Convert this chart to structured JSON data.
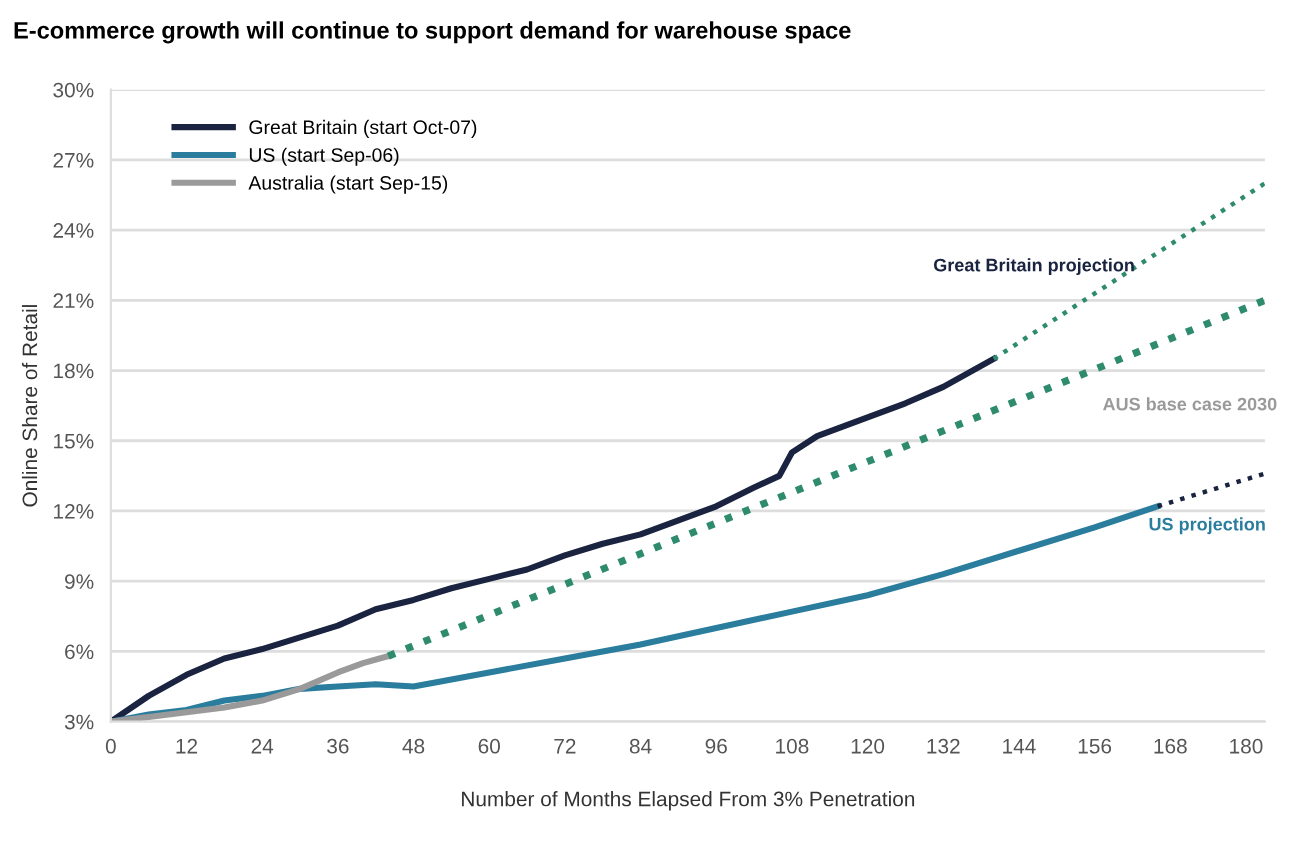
{
  "chart_data": {
    "type": "line",
    "title": "E-commerce growth will continue to support demand for warehouse space",
    "xlabel": "Number of Months Elapsed From 3% Penetration",
    "ylabel": "Online Share of Retail",
    "series": [
      {
        "name": "Great Britain (start Oct-07)",
        "color": "#1a2340",
        "x": [
          0,
          6,
          12,
          18,
          24,
          30,
          36,
          42,
          48,
          54,
          60,
          66,
          72,
          78,
          84,
          90,
          96,
          102,
          106,
          108,
          112,
          120,
          126,
          132,
          136,
          140
        ],
        "values": [
          3,
          4.1,
          5,
          5.7,
          6.1,
          6.6,
          7.1,
          7.8,
          8.2,
          8.7,
          9.1,
          9.5,
          10.1,
          10.6,
          11.0,
          11.6,
          12.2,
          13.0,
          13.5,
          14.5,
          15.2,
          16.0,
          16.6,
          17.3,
          17.9,
          18.5
        ]
      },
      {
        "name": "US (start Sep-06)",
        "color": "#2a7d9c",
        "x": [
          0,
          6,
          12,
          18,
          24,
          30,
          36,
          42,
          48,
          54,
          60,
          72,
          84,
          96,
          108,
          120,
          132,
          144,
          156,
          166
        ],
        "values": [
          3,
          3.3,
          3.5,
          3.9,
          4.1,
          4.4,
          4.5,
          4.6,
          4.5,
          4.8,
          5.1,
          5.7,
          6.3,
          7.0,
          7.7,
          8.4,
          9.3,
          10.3,
          11.3,
          12.2
        ]
      },
      {
        "name": "Australia (start Sep-15)",
        "color": "#9a9a9a",
        "x": [
          0,
          6,
          12,
          18,
          24,
          30,
          36,
          40,
          44
        ],
        "values": [
          3,
          3.2,
          3.4,
          3.6,
          3.9,
          4.4,
          5.1,
          5.5,
          5.8
        ]
      },
      {
        "color": "#2e8b6e",
        "line_style": "dotted",
        "x": [
          140,
          183
        ],
        "values": [
          18.5,
          26
        ]
      },
      {
        "color": "#2e8b6e",
        "line_style": "dotted",
        "x": [
          44,
          183
        ],
        "values": [
          5.8,
          21
        ]
      },
      {
        "color": "#1a2340",
        "line_style": "dotted",
        "x": [
          166,
          183
        ],
        "values": [
          12.2,
          13.6
        ]
      }
    ],
    "annotations": [
      "Great Britain projection",
      "AUS base case 2030",
      "US projection"
    ],
    "xlim": [
      0,
      183
    ],
    "xticks": [
      0,
      12,
      24,
      36,
      48,
      60,
      72,
      84,
      96,
      108,
      120,
      132,
      144,
      156,
      168,
      180
    ],
    "ylim": [
      3,
      30
    ],
    "yticks": [
      {
        "value": 3,
        "label": "3%"
      },
      {
        "value": 6,
        "label": "6%"
      },
      {
        "value": 9,
        "label": "9%"
      },
      {
        "value": 12,
        "label": "12%"
      },
      {
        "value": 15,
        "label": "15%"
      },
      {
        "value": 18,
        "label": "18%"
      },
      {
        "value": 21,
        "label": "21%"
      },
      {
        "value": 24,
        "label": "24%"
      },
      {
        "value": 27,
        "label": "27%"
      },
      {
        "value": 30,
        "label": "30%"
      }
    ],
    "grid": "y",
    "legend": "top left",
    "line_style": "solid"
  }
}
